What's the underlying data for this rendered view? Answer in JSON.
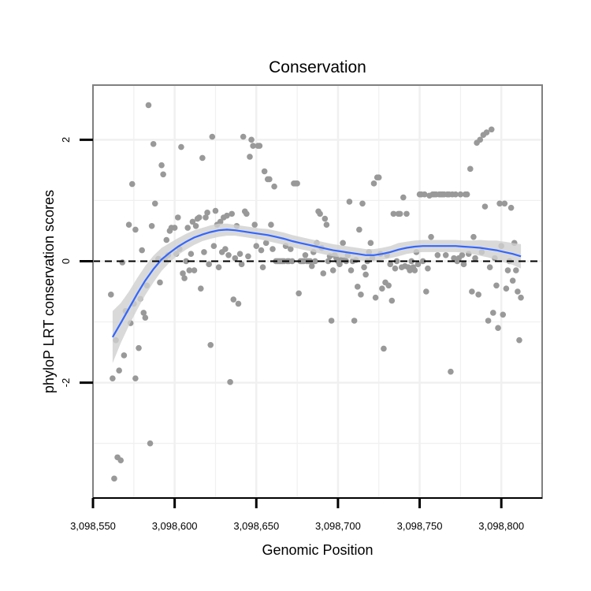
{
  "chart_data": {
    "type": "scatter",
    "title": "Conservation",
    "xlabel": "Genomic Position",
    "ylabel": "phyloP LRT conservation scores",
    "xlim": [
      3098550,
      3098825
    ],
    "ylim": [
      -3.9,
      2.9
    ],
    "xticks": [
      3098550,
      3098600,
      3098650,
      3098700,
      3098750,
      3098800
    ],
    "xtick_labels": [
      "3,098,550",
      "3,098,600",
      "3,098,650",
      "3,098,700",
      "3,098,750",
      "3,098,800"
    ],
    "yticks": [
      -2,
      0,
      2
    ],
    "ytick_labels": [
      "-2",
      "0",
      "2"
    ],
    "reference_line": {
      "y": 0,
      "style": "dashed",
      "color": "#000000"
    },
    "grid": true,
    "colors": {
      "points": "#999999",
      "smooth": "#3366ff",
      "ribbon": "#d0d0d0",
      "grid": "#f0f0f0",
      "frame": "#808080"
    },
    "points": [
      {
        "x": 3098561,
        "y": -0.55
      },
      {
        "x": 3098562,
        "y": -1.93
      },
      {
        "x": 3098563,
        "y": -3.58
      },
      {
        "x": 3098564,
        "y": -1.3
      },
      {
        "x": 3098565,
        "y": -3.23
      },
      {
        "x": 3098566,
        "y": -1.8
      },
      {
        "x": 3098567,
        "y": -3.28
      },
      {
        "x": 3098568,
        "y": -0.02
      },
      {
        "x": 3098569,
        "y": -1.55
      },
      {
        "x": 3098570,
        "y": -0.82
      },
      {
        "x": 3098572,
        "y": 0.6
      },
      {
        "x": 3098573,
        "y": -1.02
      },
      {
        "x": 3098574,
        "y": 1.27
      },
      {
        "x": 3098575,
        "y": -0.7
      },
      {
        "x": 3098576,
        "y": -1.93
      },
      {
        "x": 3098576,
        "y": 0.52
      },
      {
        "x": 3098578,
        "y": -1.43
      },
      {
        "x": 3098579,
        "y": -0.62
      },
      {
        "x": 3098580,
        "y": 0.18
      },
      {
        "x": 3098581,
        "y": -0.85
      },
      {
        "x": 3098582,
        "y": -0.93
      },
      {
        "x": 3098583,
        "y": -0.4
      },
      {
        "x": 3098584,
        "y": 2.57
      },
      {
        "x": 3098585,
        "y": -3.0
      },
      {
        "x": 3098586,
        "y": 0.58
      },
      {
        "x": 3098587,
        "y": 1.93
      },
      {
        "x": 3098588,
        "y": 0.95
      },
      {
        "x": 3098590,
        "y": 0.04
      },
      {
        "x": 3098591,
        "y": -0.35
      },
      {
        "x": 3098592,
        "y": 1.58
      },
      {
        "x": 3098593,
        "y": 1.43
      },
      {
        "x": 3098594,
        "y": 0.03
      },
      {
        "x": 3098595,
        "y": 0.35
      },
      {
        "x": 3098596,
        "y": 0.1
      },
      {
        "x": 3098597,
        "y": 0.5
      },
      {
        "x": 3098598,
        "y": 0.55
      },
      {
        "x": 3098600,
        "y": 0.55
      },
      {
        "x": 3098601,
        "y": 0.12
      },
      {
        "x": 3098602,
        "y": 0.72
      },
      {
        "x": 3098603,
        "y": 0.2
      },
      {
        "x": 3098604,
        "y": 1.88
      },
      {
        "x": 3098605,
        "y": -0.2
      },
      {
        "x": 3098606,
        "y": -0.28
      },
      {
        "x": 3098607,
        "y": 0.0
      },
      {
        "x": 3098608,
        "y": 0.55
      },
      {
        "x": 3098609,
        "y": -0.15
      },
      {
        "x": 3098610,
        "y": 0.12
      },
      {
        "x": 3098611,
        "y": 0.65
      },
      {
        "x": 3098612,
        "y": -0.15
      },
      {
        "x": 3098613,
        "y": 0.58
      },
      {
        "x": 3098614,
        "y": 0.7
      },
      {
        "x": 3098615,
        "y": 0.72
      },
      {
        "x": 3098616,
        "y": -0.45
      },
      {
        "x": 3098617,
        "y": 1.7
      },
      {
        "x": 3098618,
        "y": 0.15
      },
      {
        "x": 3098619,
        "y": 0.72
      },
      {
        "x": 3098620,
        "y": 0.8
      },
      {
        "x": 3098621,
        "y": -0.05
      },
      {
        "x": 3098622,
        "y": -1.38
      },
      {
        "x": 3098623,
        "y": 2.05
      },
      {
        "x": 3098624,
        "y": 0.25
      },
      {
        "x": 3098625,
        "y": 0.83
      },
      {
        "x": 3098626,
        "y": 0.6
      },
      {
        "x": 3098627,
        "y": -0.1
      },
      {
        "x": 3098628,
        "y": 0.65
      },
      {
        "x": 3098629,
        "y": 0.15
      },
      {
        "x": 3098630,
        "y": 0.72
      },
      {
        "x": 3098631,
        "y": 0.2
      },
      {
        "x": 3098632,
        "y": 0.75
      },
      {
        "x": 3098633,
        "y": 0.1
      },
      {
        "x": 3098634,
        "y": -1.99
      },
      {
        "x": 3098635,
        "y": 0.78
      },
      {
        "x": 3098636,
        "y": -0.63
      },
      {
        "x": 3098637,
        "y": 0.05
      },
      {
        "x": 3098638,
        "y": 0.58
      },
      {
        "x": 3098639,
        "y": -0.7
      },
      {
        "x": 3098640,
        "y": 0.12
      },
      {
        "x": 3098641,
        "y": -0.05
      },
      {
        "x": 3098642,
        "y": 2.05
      },
      {
        "x": 3098643,
        "y": 0.82
      },
      {
        "x": 3098644,
        "y": 0.78
      },
      {
        "x": 3098645,
        "y": 0.08
      },
      {
        "x": 3098646,
        "y": 1.72
      },
      {
        "x": 3098647,
        "y": 2.0
      },
      {
        "x": 3098648,
        "y": 1.9
      },
      {
        "x": 3098649,
        "y": 0.6
      },
      {
        "x": 3098650,
        "y": 0.25
      },
      {
        "x": 3098651,
        "y": 1.9
      },
      {
        "x": 3098652,
        "y": 1.9
      },
      {
        "x": 3098653,
        "y": 0.18
      },
      {
        "x": 3098654,
        "y": -0.1
      },
      {
        "x": 3098655,
        "y": 1.48
      },
      {
        "x": 3098656,
        "y": 0.3
      },
      {
        "x": 3098657,
        "y": 1.35
      },
      {
        "x": 3098658,
        "y": 1.35
      },
      {
        "x": 3098659,
        "y": 0.6
      },
      {
        "x": 3098660,
        "y": 0.2
      },
      {
        "x": 3098661,
        "y": 1.23
      },
      {
        "x": 3098662,
        "y": 0.0
      },
      {
        "x": 3098663,
        "y": 0.0
      },
      {
        "x": 3098664,
        "y": 0.0
      },
      {
        "x": 3098665,
        "y": 0.0
      },
      {
        "x": 3098666,
        "y": 0.0
      },
      {
        "x": 3098667,
        "y": 0.0
      },
      {
        "x": 3098668,
        "y": 0.25
      },
      {
        "x": 3098669,
        "y": 0.0
      },
      {
        "x": 3098670,
        "y": 0.0
      },
      {
        "x": 3098671,
        "y": 0.2
      },
      {
        "x": 3098672,
        "y": 0.0
      },
      {
        "x": 3098673,
        "y": 1.28
      },
      {
        "x": 3098674,
        "y": 1.28
      },
      {
        "x": 3098675,
        "y": 1.28
      },
      {
        "x": 3098676,
        "y": -0.53
      },
      {
        "x": 3098677,
        "y": 0.0
      },
      {
        "x": 3098678,
        "y": 0.0
      },
      {
        "x": 3098679,
        "y": 0.0
      },
      {
        "x": 3098680,
        "y": 0.1
      },
      {
        "x": 3098681,
        "y": 0.0
      },
      {
        "x": 3098682,
        "y": 0.0
      },
      {
        "x": 3098683,
        "y": 0.0
      },
      {
        "x": 3098684,
        "y": -0.08
      },
      {
        "x": 3098685,
        "y": 0.15
      },
      {
        "x": 3098686,
        "y": 0.0
      },
      {
        "x": 3098687,
        "y": 0.3
      },
      {
        "x": 3098688,
        "y": 0.82
      },
      {
        "x": 3098689,
        "y": 0.78
      },
      {
        "x": 3098690,
        "y": 0.22
      },
      {
        "x": 3098691,
        "y": -0.2
      },
      {
        "x": 3098692,
        "y": 0.7
      },
      {
        "x": 3098693,
        "y": 0.6
      },
      {
        "x": 3098694,
        "y": 0.0
      },
      {
        "x": 3098695,
        "y": 0.08
      },
      {
        "x": 3098696,
        "y": -0.98
      },
      {
        "x": 3098697,
        "y": -0.15
      },
      {
        "x": 3098698,
        "y": 0.1
      },
      {
        "x": 3098699,
        "y": 0.05
      },
      {
        "x": 3098700,
        "y": 0.0
      },
      {
        "x": 3098701,
        "y": -0.05
      },
      {
        "x": 3098702,
        "y": 0.02
      },
      {
        "x": 3098703,
        "y": 0.3
      },
      {
        "x": 3098704,
        "y": 0.02
      },
      {
        "x": 3098705,
        "y": 0.0
      },
      {
        "x": 3098706,
        "y": 0.1
      },
      {
        "x": 3098707,
        "y": 0.98
      },
      {
        "x": 3098708,
        "y": -0.15
      },
      {
        "x": 3098709,
        "y": 0.0
      },
      {
        "x": 3098710,
        "y": -0.98
      },
      {
        "x": 3098711,
        "y": 0.02
      },
      {
        "x": 3098712,
        "y": -0.42
      },
      {
        "x": 3098713,
        "y": 0.52
      },
      {
        "x": 3098714,
        "y": -0.55
      },
      {
        "x": 3098715,
        "y": 0.95
      },
      {
        "x": 3098716,
        "y": -0.1
      },
      {
        "x": 3098717,
        "y": -0.22
      },
      {
        "x": 3098718,
        "y": 0.0
      },
      {
        "x": 3098719,
        "y": 0.15
      },
      {
        "x": 3098720,
        "y": 0.3
      },
      {
        "x": 3098721,
        "y": 0.05
      },
      {
        "x": 3098722,
        "y": 1.28
      },
      {
        "x": 3098723,
        "y": -0.6
      },
      {
        "x": 3098724,
        "y": 1.38
      },
      {
        "x": 3098725,
        "y": 1.38
      },
      {
        "x": 3098726,
        "y": 0.12
      },
      {
        "x": 3098727,
        "y": -0.45
      },
      {
        "x": 3098728,
        "y": -1.44
      },
      {
        "x": 3098729,
        "y": -0.35
      },
      {
        "x": 3098730,
        "y": 0.1
      },
      {
        "x": 3098731,
        "y": -0.4
      },
      {
        "x": 3098732,
        "y": -0.05
      },
      {
        "x": 3098733,
        "y": -0.65
      },
      {
        "x": 3098734,
        "y": 0.78
      },
      {
        "x": 3098735,
        "y": -0.12
      },
      {
        "x": 3098736,
        "y": 0.0
      },
      {
        "x": 3098737,
        "y": 0.78
      },
      {
        "x": 3098738,
        "y": 0.78
      },
      {
        "x": 3098739,
        "y": -0.1
      },
      {
        "x": 3098740,
        "y": 1.05
      },
      {
        "x": 3098741,
        "y": -0.08
      },
      {
        "x": 3098742,
        "y": 0.78
      },
      {
        "x": 3098743,
        "y": -0.1
      },
      {
        "x": 3098744,
        "y": -0.15
      },
      {
        "x": 3098745,
        "y": 0.0
      },
      {
        "x": 3098746,
        "y": -0.1
      },
      {
        "x": 3098747,
        "y": -0.15
      },
      {
        "x": 3098748,
        "y": 0.15
      },
      {
        "x": 3098749,
        "y": -0.05
      },
      {
        "x": 3098750,
        "y": 1.1
      },
      {
        "x": 3098751,
        "y": 1.1
      },
      {
        "x": 3098752,
        "y": 0.0
      },
      {
        "x": 3098753,
        "y": 1.1
      },
      {
        "x": 3098754,
        "y": -0.5
      },
      {
        "x": 3098755,
        "y": -0.12
      },
      {
        "x": 3098756,
        "y": 1.08
      },
      {
        "x": 3098757,
        "y": 0.4
      },
      {
        "x": 3098758,
        "y": 1.1
      },
      {
        "x": 3098759,
        "y": 1.1
      },
      {
        "x": 3098760,
        "y": 1.1
      },
      {
        "x": 3098761,
        "y": 0.1
      },
      {
        "x": 3098762,
        "y": 1.1
      },
      {
        "x": 3098763,
        "y": 1.1
      },
      {
        "x": 3098764,
        "y": 1.1
      },
      {
        "x": 3098765,
        "y": 1.1
      },
      {
        "x": 3098766,
        "y": 0.1
      },
      {
        "x": 3098767,
        "y": 1.1
      },
      {
        "x": 3098768,
        "y": 1.1
      },
      {
        "x": 3098769,
        "y": -1.82
      },
      {
        "x": 3098770,
        "y": 1.1
      },
      {
        "x": 3098771,
        "y": 0.05
      },
      {
        "x": 3098772,
        "y": 1.1
      },
      {
        "x": 3098773,
        "y": 0.0
      },
      {
        "x": 3098774,
        "y": 0.05
      },
      {
        "x": 3098775,
        "y": 1.1
      },
      {
        "x": 3098776,
        "y": 0.1
      },
      {
        "x": 3098777,
        "y": -0.05
      },
      {
        "x": 3098778,
        "y": 1.1
      },
      {
        "x": 3098779,
        "y": 1.1
      },
      {
        "x": 3098780,
        "y": 0.12
      },
      {
        "x": 3098781,
        "y": 1.52
      },
      {
        "x": 3098782,
        "y": -0.5
      },
      {
        "x": 3098783,
        "y": 0.4
      },
      {
        "x": 3098784,
        "y": 0.05
      },
      {
        "x": 3098785,
        "y": 1.95
      },
      {
        "x": 3098786,
        "y": -0.55
      },
      {
        "x": 3098787,
        "y": 2.0
      },
      {
        "x": 3098788,
        "y": 0.15
      },
      {
        "x": 3098789,
        "y": 2.08
      },
      {
        "x": 3098790,
        "y": 0.9
      },
      {
        "x": 3098791,
        "y": 2.12
      },
      {
        "x": 3098792,
        "y": -0.98
      },
      {
        "x": 3098793,
        "y": -0.1
      },
      {
        "x": 3098794,
        "y": 2.17
      },
      {
        "x": 3098795,
        "y": -0.85
      },
      {
        "x": 3098796,
        "y": 0.05
      },
      {
        "x": 3098797,
        "y": -0.4
      },
      {
        "x": 3098798,
        "y": -1.1
      },
      {
        "x": 3098799,
        "y": 0.95
      },
      {
        "x": 3098800,
        "y": 0.25
      },
      {
        "x": 3098801,
        "y": -0.88
      },
      {
        "x": 3098802,
        "y": 0.95
      },
      {
        "x": 3098803,
        "y": -0.45
      },
      {
        "x": 3098804,
        "y": -0.15
      },
      {
        "x": 3098805,
        "y": 0.0
      },
      {
        "x": 3098806,
        "y": 0.88
      },
      {
        "x": 3098807,
        "y": -0.32
      },
      {
        "x": 3098808,
        "y": 0.3
      },
      {
        "x": 3098809,
        "y": -0.15
      },
      {
        "x": 3098810,
        "y": -0.5
      },
      {
        "x": 3098811,
        "y": -1.3
      },
      {
        "x": 3098812,
        "y": -0.6
      }
    ],
    "smooth_line": {
      "x": [
        3098562,
        3098567,
        3098572,
        3098577,
        3098582,
        3098587,
        3098592,
        3098597,
        3098602,
        3098607,
        3098612,
        3098617,
        3098622,
        3098627,
        3098632,
        3098637,
        3098642,
        3098647,
        3098652,
        3098657,
        3098662,
        3098667,
        3098672,
        3098677,
        3098682,
        3098687,
        3098692,
        3098697,
        3098702,
        3098707,
        3098712,
        3098717,
        3098722,
        3098727,
        3098732,
        3098737,
        3098742,
        3098747,
        3098752,
        3098757,
        3098762,
        3098767,
        3098772,
        3098777,
        3098782,
        3098787,
        3098792,
        3098797,
        3098802,
        3098807,
        3098812
      ],
      "y": [
        -1.25,
        -1.02,
        -0.78,
        -0.54,
        -0.32,
        -0.13,
        0.03,
        0.14,
        0.24,
        0.32,
        0.39,
        0.44,
        0.48,
        0.51,
        0.52,
        0.51,
        0.49,
        0.47,
        0.45,
        0.43,
        0.4,
        0.37,
        0.33,
        0.3,
        0.27,
        0.24,
        0.21,
        0.18,
        0.16,
        0.14,
        0.12,
        0.1,
        0.1,
        0.12,
        0.15,
        0.19,
        0.22,
        0.24,
        0.25,
        0.25,
        0.25,
        0.25,
        0.25,
        0.24,
        0.23,
        0.22,
        0.2,
        0.18,
        0.15,
        0.12,
        0.08
      ],
      "lower": [
        -1.68,
        -1.35,
        -1.06,
        -0.8,
        -0.56,
        -0.35,
        -0.16,
        -0.02,
        0.1,
        0.19,
        0.27,
        0.33,
        0.37,
        0.4,
        0.42,
        0.42,
        0.4,
        0.38,
        0.36,
        0.33,
        0.3,
        0.27,
        0.23,
        0.2,
        0.17,
        0.14,
        0.11,
        0.08,
        0.06,
        0.04,
        0.02,
        0.0,
        0.0,
        0.02,
        0.05,
        0.08,
        0.12,
        0.14,
        0.15,
        0.15,
        0.15,
        0.15,
        0.15,
        0.14,
        0.12,
        0.09,
        0.06,
        0.02,
        -0.02,
        -0.06,
        -0.12
      ],
      "upper": [
        -0.82,
        -0.69,
        -0.5,
        -0.28,
        -0.08,
        0.09,
        0.22,
        0.3,
        0.38,
        0.45,
        0.51,
        0.55,
        0.59,
        0.62,
        0.62,
        0.6,
        0.58,
        0.56,
        0.54,
        0.53,
        0.5,
        0.47,
        0.43,
        0.4,
        0.37,
        0.34,
        0.31,
        0.28,
        0.26,
        0.24,
        0.22,
        0.2,
        0.2,
        0.22,
        0.25,
        0.3,
        0.32,
        0.34,
        0.35,
        0.35,
        0.35,
        0.35,
        0.35,
        0.34,
        0.34,
        0.35,
        0.34,
        0.34,
        0.32,
        0.3,
        0.28
      ]
    }
  }
}
